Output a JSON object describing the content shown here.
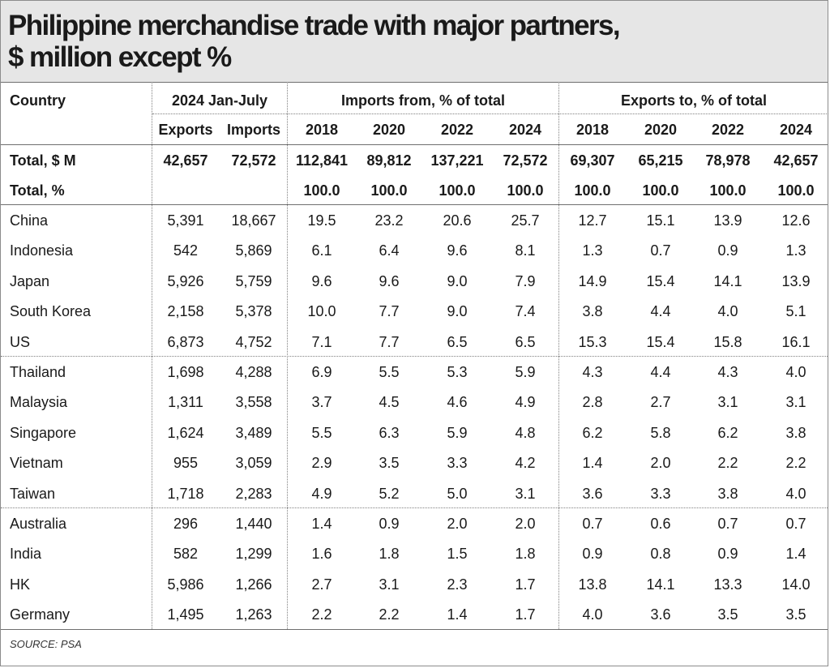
{
  "title": "Philippine merchandise trade with major partners,\n$ million except %",
  "source": "SOURCE: PSA",
  "chart_data": {
    "type": "table",
    "title": "Philippine merchandise trade with major partners, $ million except %",
    "header_groups": {
      "country": "Country",
      "ytd": "2024 Jan-July",
      "imports": "Imports from, % of total",
      "exports": "Exports to, % of total"
    },
    "subheaders": [
      "Exports",
      "Imports",
      "2018",
      "2020",
      "2022",
      "2024",
      "2018",
      "2020",
      "2022",
      "2024"
    ],
    "total_rows": [
      {
        "label": "Total, $ M",
        "values": [
          "42,657",
          "72,572",
          "112,841",
          "89,812",
          "137,221",
          "72,572",
          "69,307",
          "65,215",
          "78,978",
          "42,657"
        ]
      },
      {
        "label": "Total, %",
        "values": [
          "",
          "",
          "100.0",
          "100.0",
          "100.0",
          "100.0",
          "100.0",
          "100.0",
          "100.0",
          "100.0"
        ]
      }
    ],
    "rows": [
      {
        "label": "China",
        "values": [
          "5,391",
          "18,667",
          "19.5",
          "23.2",
          "20.6",
          "25.7",
          "12.7",
          "15.1",
          "13.9",
          "12.6"
        ]
      },
      {
        "label": "Indonesia",
        "values": [
          "542",
          "5,869",
          "6.1",
          "6.4",
          "9.6",
          "8.1",
          "1.3",
          "0.7",
          "0.9",
          "1.3"
        ]
      },
      {
        "label": "Japan",
        "values": [
          "5,926",
          "5,759",
          "9.6",
          "9.6",
          "9.0",
          "7.9",
          "14.9",
          "15.4",
          "14.1",
          "13.9"
        ]
      },
      {
        "label": "South Korea",
        "values": [
          "2,158",
          "5,378",
          "10.0",
          "7.7",
          "9.0",
          "7.4",
          "3.8",
          "4.4",
          "4.0",
          "5.1"
        ]
      },
      {
        "label": "US",
        "values": [
          "6,873",
          "4,752",
          "7.1",
          "7.7",
          "6.5",
          "6.5",
          "15.3",
          "15.4",
          "15.8",
          "16.1"
        ]
      },
      {
        "label": "Thailand",
        "values": [
          "1,698",
          "4,288",
          "6.9",
          "5.5",
          "5.3",
          "5.9",
          "4.3",
          "4.4",
          "4.3",
          "4.0"
        ]
      },
      {
        "label": "Malaysia",
        "values": [
          "1,311",
          "3,558",
          "3.7",
          "4.5",
          "4.6",
          "4.9",
          "2.8",
          "2.7",
          "3.1",
          "3.1"
        ]
      },
      {
        "label": "Singapore",
        "values": [
          "1,624",
          "3,489",
          "5.5",
          "6.3",
          "5.9",
          "4.8",
          "6.2",
          "5.8",
          "6.2",
          "3.8"
        ]
      },
      {
        "label": "Vietnam",
        "values": [
          "955",
          "3,059",
          "2.9",
          "3.5",
          "3.3",
          "4.2",
          "1.4",
          "2.0",
          "2.2",
          "2.2"
        ]
      },
      {
        "label": "Taiwan",
        "values": [
          "1,718",
          "2,283",
          "4.9",
          "5.2",
          "5.0",
          "3.1",
          "3.6",
          "3.3",
          "3.8",
          "4.0"
        ]
      },
      {
        "label": "Australia",
        "values": [
          "296",
          "1,440",
          "1.4",
          "0.9",
          "2.0",
          "2.0",
          "0.7",
          "0.6",
          "0.7",
          "0.7"
        ]
      },
      {
        "label": "India",
        "values": [
          "582",
          "1,299",
          "1.6",
          "1.8",
          "1.5",
          "1.8",
          "0.9",
          "0.8",
          "0.9",
          "1.4"
        ]
      },
      {
        "label": "HK",
        "values": [
          "5,986",
          "1,266",
          "2.7",
          "3.1",
          "2.3",
          "1.7",
          "13.8",
          "14.1",
          "13.3",
          "14.0"
        ]
      },
      {
        "label": "Germany",
        "values": [
          "1,495",
          "1,263",
          "2.2",
          "2.2",
          "1.4",
          "1.7",
          "4.0",
          "3.6",
          "3.5",
          "3.5"
        ]
      }
    ]
  }
}
